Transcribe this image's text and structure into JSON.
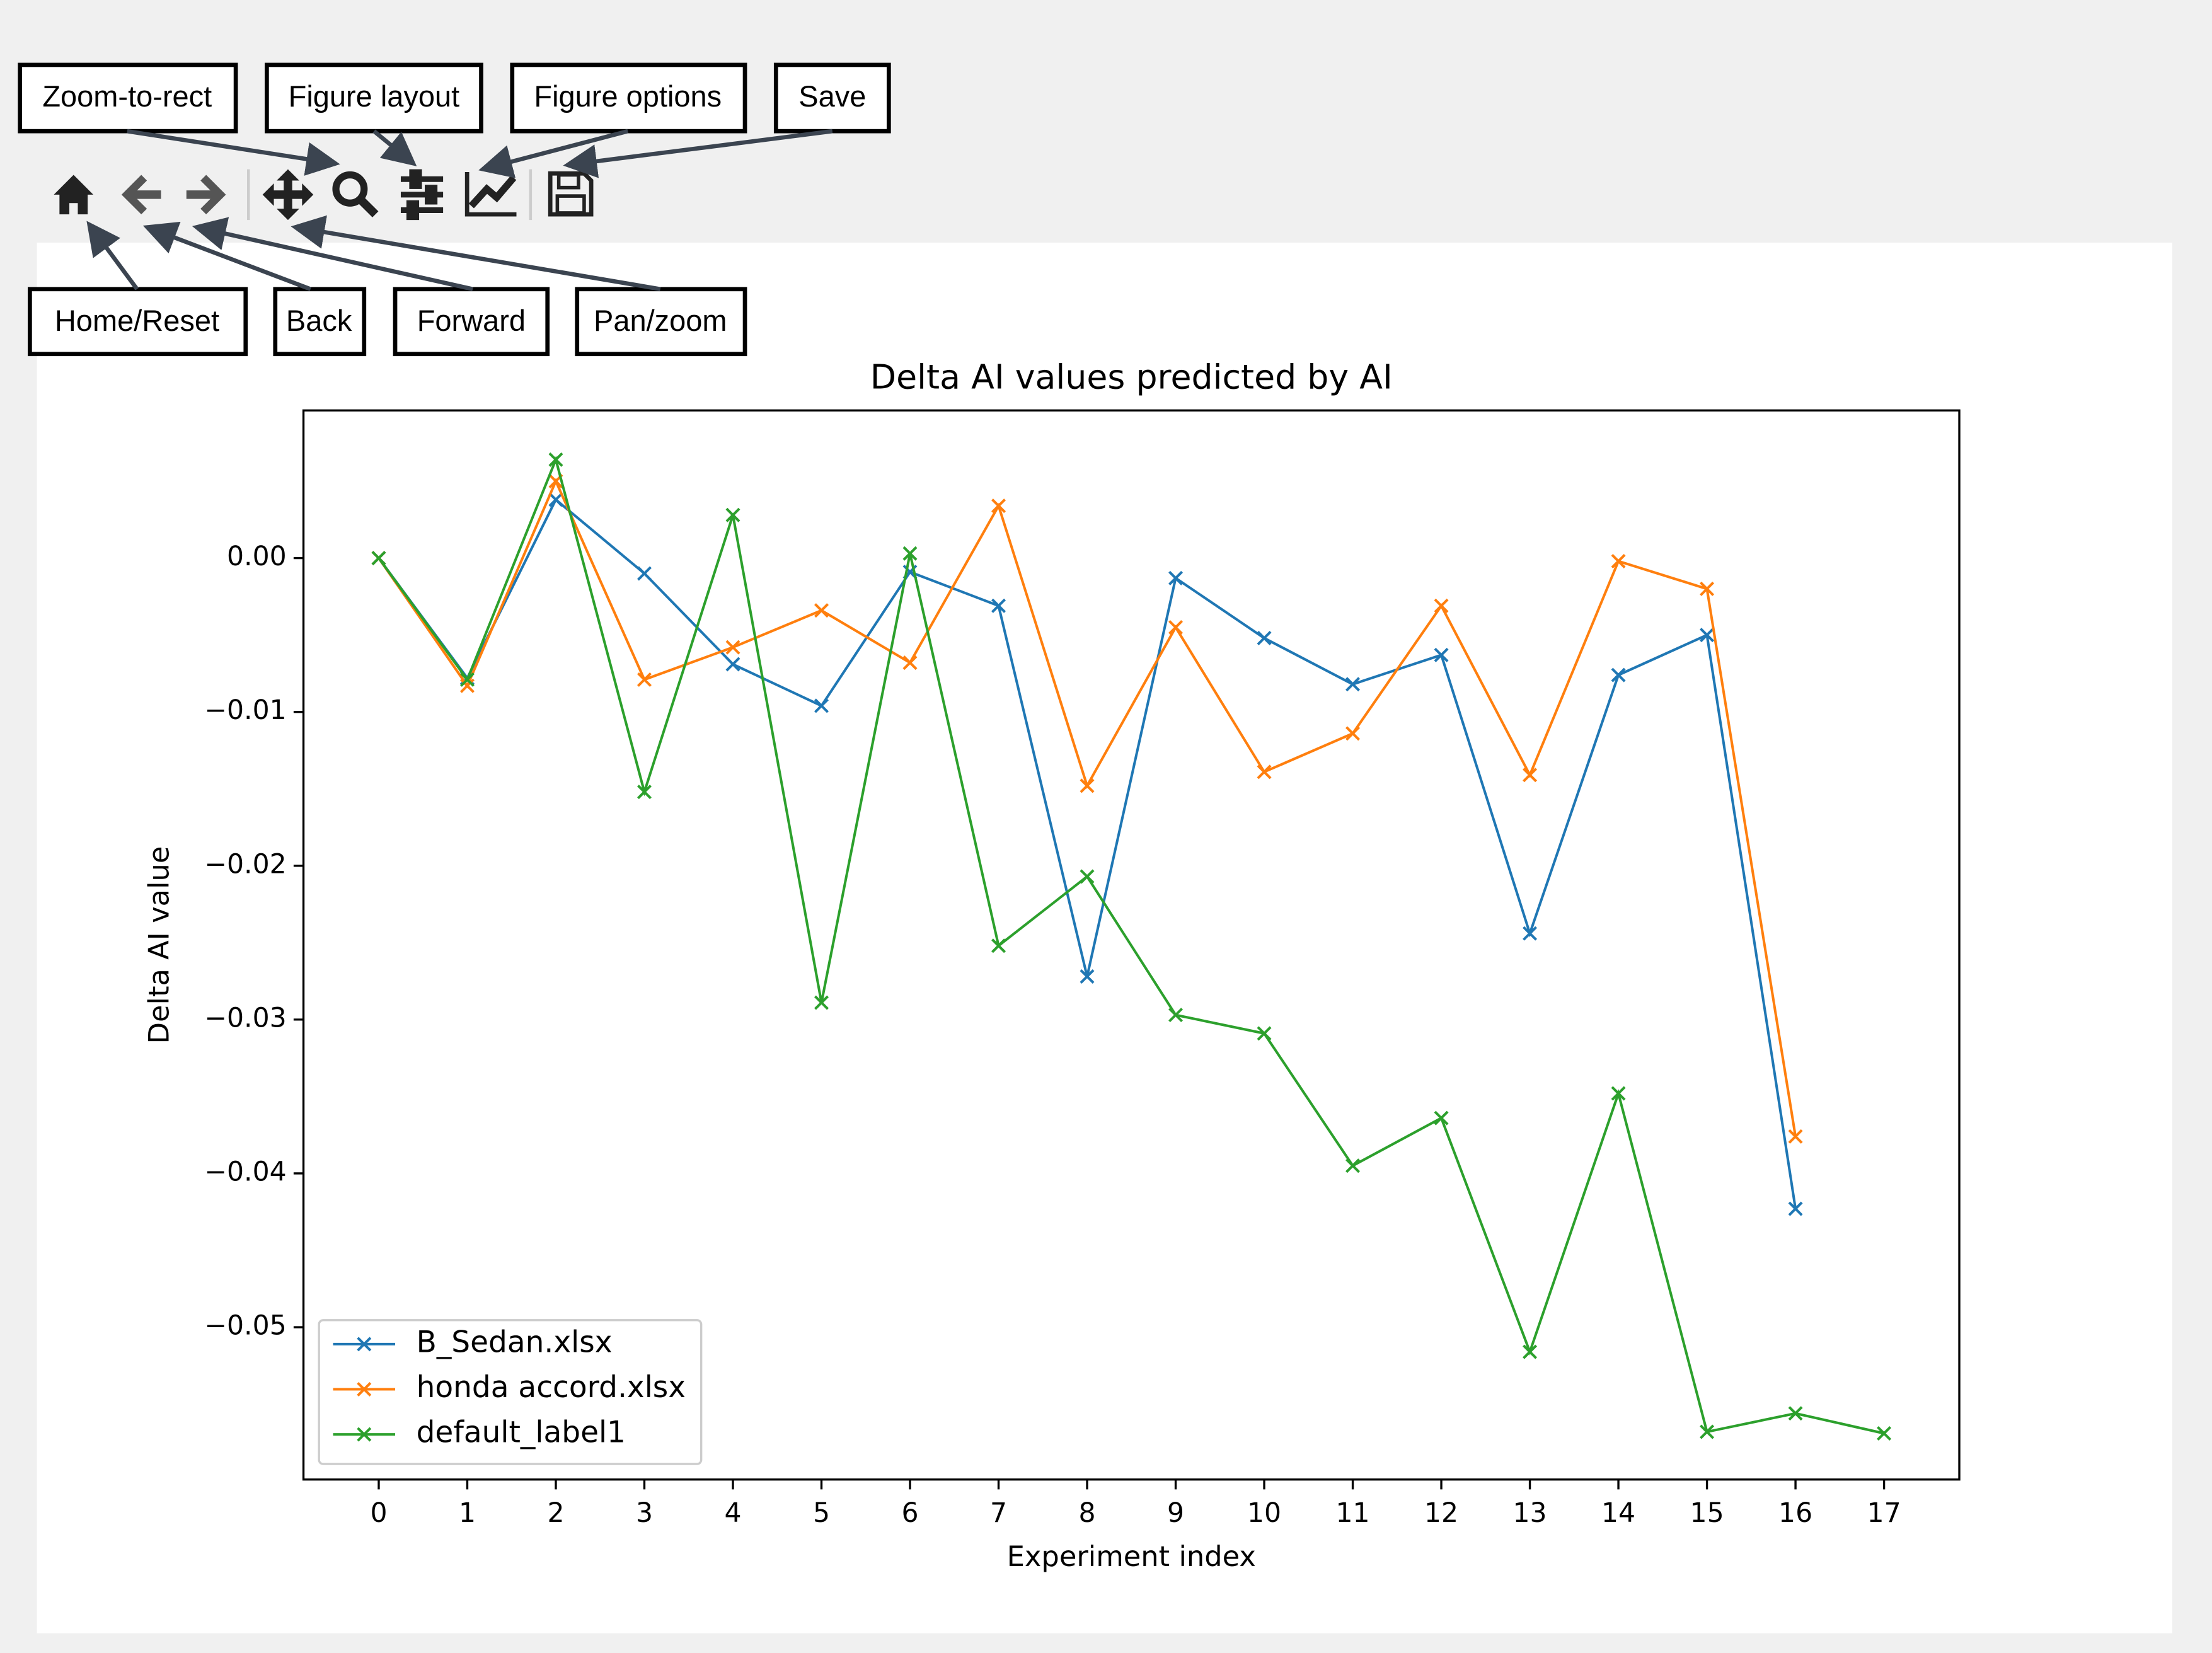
{
  "annotations": [
    {
      "label": "Zoom-to-rect"
    },
    {
      "label": "Figure layout"
    },
    {
      "label": "Figure options"
    },
    {
      "label": "Save"
    },
    {
      "label": "Home/Reset"
    },
    {
      "label": "Back"
    },
    {
      "label": "Forward"
    },
    {
      "label": "Pan/zoom"
    }
  ],
  "chart_data": {
    "type": "line",
    "title": "Delta AI values predicted by AI",
    "xlabel": "Experiment index",
    "ylabel": "Delta AI value",
    "x": [
      0,
      1,
      2,
      3,
      4,
      5,
      6,
      7,
      8,
      9,
      10,
      11,
      12,
      13,
      14,
      15,
      16,
      17
    ],
    "series": [
      {
        "name": "B_Sedan.xlsx",
        "color": "#1f77b4",
        "values": [
          0,
          -0.0078,
          0.0038,
          -0.001,
          -0.0069,
          -0.0096,
          -0.0009,
          -0.0031,
          -0.0272,
          -0.0013,
          -0.0052,
          -0.0082,
          -0.0063,
          -0.0244,
          -0.0076,
          -0.005,
          -0.0423,
          null
        ]
      },
      {
        "name": "honda accord.xlsx",
        "color": "#ff7f0e",
        "values": [
          0,
          -0.0083,
          0.005,
          -0.0079,
          -0.0058,
          -0.0034,
          -0.0068,
          0.0034,
          -0.0148,
          -0.0045,
          -0.0139,
          -0.0114,
          -0.0031,
          -0.0141,
          -0.0002,
          -0.002,
          -0.0376,
          null
        ]
      },
      {
        "name": "default_label1",
        "color": "#2ca02c",
        "values": [
          0,
          -0.0079,
          0.0064,
          -0.0152,
          0.0028,
          -0.0289,
          0.0003,
          -0.0252,
          -0.0207,
          -0.0297,
          -0.0309,
          -0.0395,
          -0.0364,
          -0.0516,
          -0.0348,
          -0.0568,
          -0.0556,
          -0.0569
        ]
      }
    ],
    "xlim": [
      -0.85,
      17.85
    ],
    "ylim": [
      -0.0599,
      0.0096
    ],
    "xticks": [
      0,
      1,
      2,
      3,
      4,
      5,
      6,
      7,
      8,
      9,
      10,
      11,
      12,
      13,
      14,
      15,
      16,
      17
    ],
    "yticks": [
      {
        "value": 0,
        "label": "0.00"
      },
      {
        "value": -0.01,
        "label": "−0.01"
      },
      {
        "value": -0.02,
        "label": "−0.02"
      },
      {
        "value": -0.03,
        "label": "−0.03"
      },
      {
        "value": -0.04,
        "label": "−0.04"
      },
      {
        "value": -0.05,
        "label": "−0.05"
      }
    ],
    "grid": false,
    "legend": "lower left",
    "marker": "x"
  }
}
